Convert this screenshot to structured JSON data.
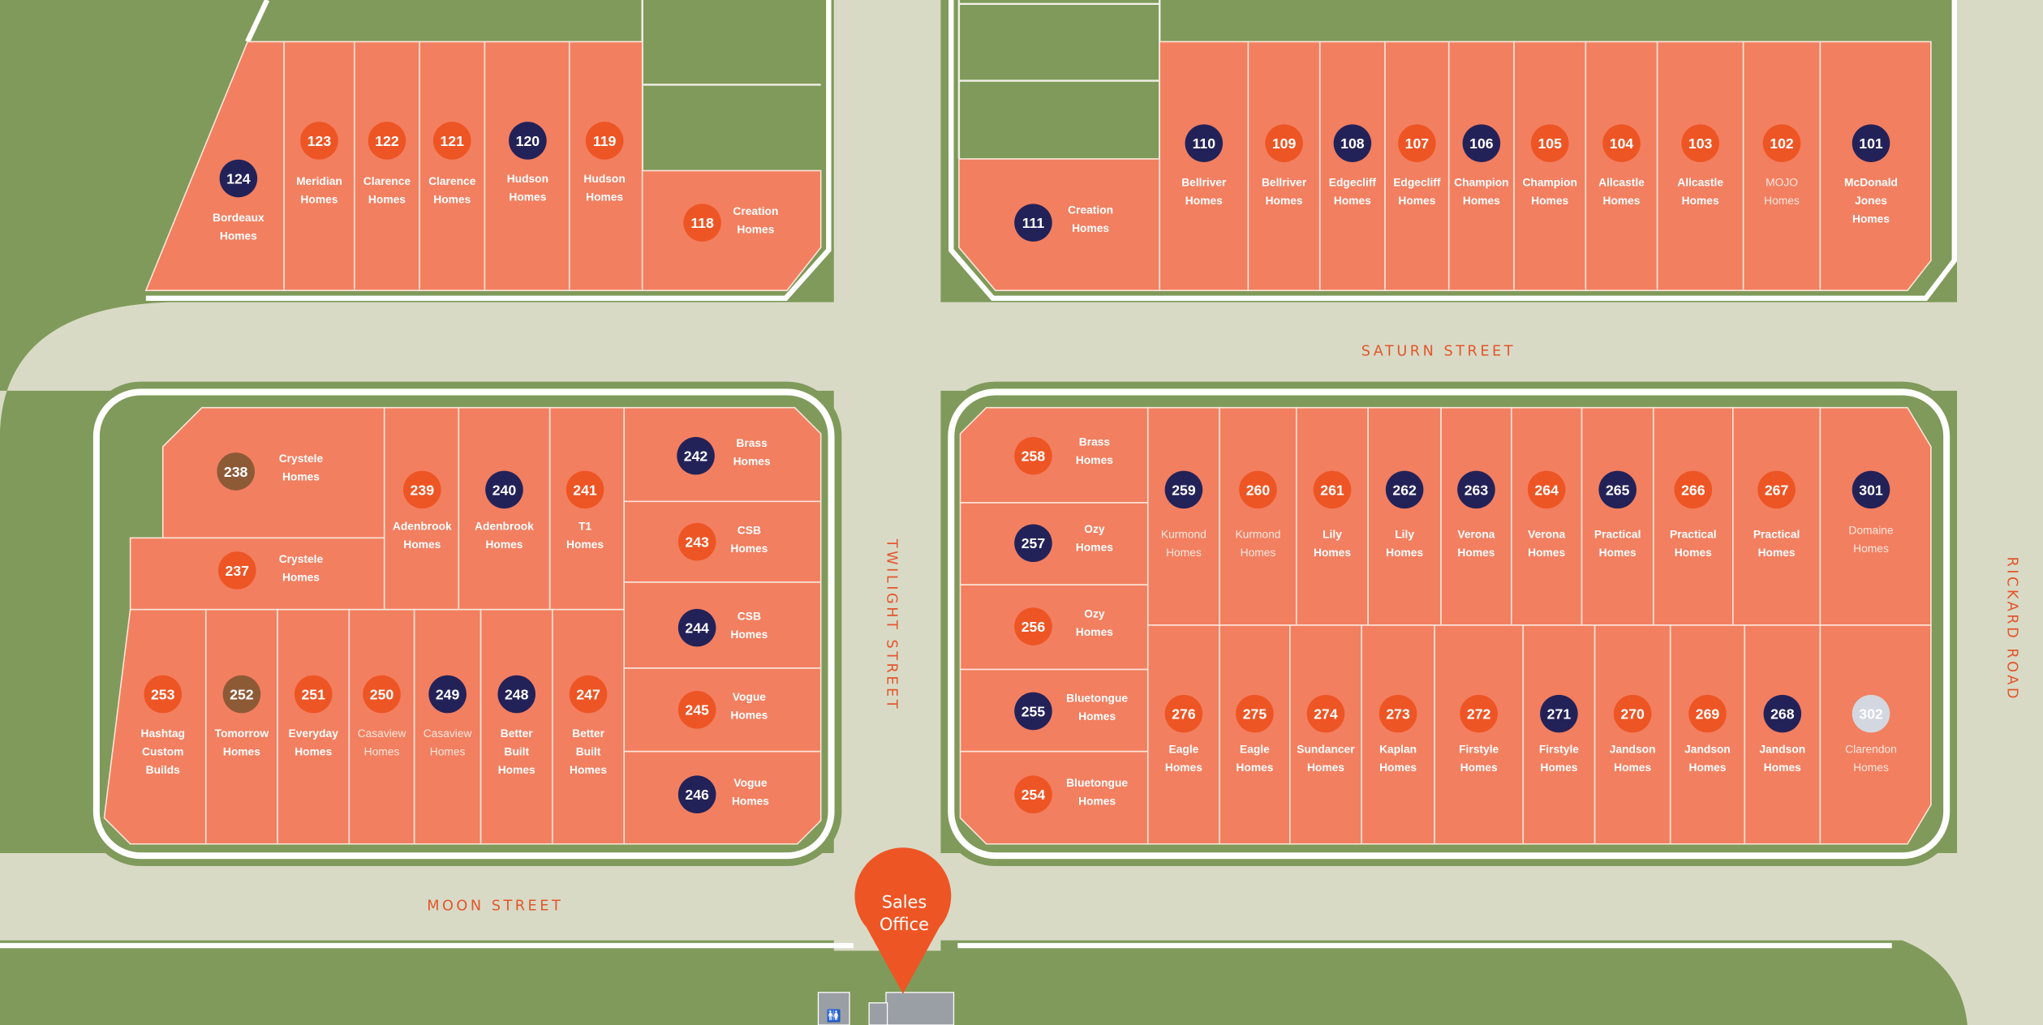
{
  "colors": {
    "grass": "#7f9a5a",
    "road": "#d8dac6",
    "lot": "#f27f60",
    "marker_orange": "#ee5524",
    "marker_navy": "#232258",
    "marker_brown": "#8d5a36",
    "marker_grey": "#d3d7e0",
    "street_label": "#e2562a"
  },
  "streets": {
    "saturn": "SATURN STREET",
    "twilight": "TWILIGHT STREET",
    "moon": "MOON STREET",
    "rickard": "RICKARD ROAD"
  },
  "sales_office": {
    "line1": "Sales",
    "line2": "Office",
    "icon": "map-pin-icon"
  },
  "lots": [
    {
      "number": "124",
      "builder": "Bordeaux Homes",
      "marker": "navy"
    },
    {
      "number": "123",
      "builder": "Meridian Homes",
      "marker": "orange"
    },
    {
      "number": "122",
      "builder": "Clarence Homes",
      "marker": "orange"
    },
    {
      "number": "121",
      "builder": "Clarence Homes",
      "marker": "orange"
    },
    {
      "number": "120",
      "builder": "Hudson Homes",
      "marker": "navy"
    },
    {
      "number": "119",
      "builder": "Hudson Homes",
      "marker": "orange"
    },
    {
      "number": "118",
      "builder": "Creation Homes",
      "marker": "orange"
    },
    {
      "number": "111",
      "builder": "Creation Homes",
      "marker": "navy"
    },
    {
      "number": "110",
      "builder": "Bellriver Homes",
      "marker": "navy"
    },
    {
      "number": "109",
      "builder": "Bellriver Homes",
      "marker": "orange"
    },
    {
      "number": "108",
      "builder": "Edgecliff Homes",
      "marker": "navy"
    },
    {
      "number": "107",
      "builder": "Edgecliff Homes",
      "marker": "orange"
    },
    {
      "number": "106",
      "builder": "Champion Homes",
      "marker": "navy"
    },
    {
      "number": "105",
      "builder": "Champion Homes",
      "marker": "orange"
    },
    {
      "number": "104",
      "builder": "Allcastle Homes",
      "marker": "orange"
    },
    {
      "number": "103",
      "builder": "Allcastle Homes",
      "marker": "orange"
    },
    {
      "number": "102",
      "builder": "MOJO Homes",
      "marker": "orange"
    },
    {
      "number": "101",
      "builder": "McDonald Jones Homes",
      "marker": "navy"
    },
    {
      "number": "238",
      "builder": "Crystele Homes",
      "marker": "brown"
    },
    {
      "number": "237",
      "builder": "Crystele Homes",
      "marker": "orange"
    },
    {
      "number": "239",
      "builder": "Adenbrook Homes",
      "marker": "orange"
    },
    {
      "number": "240",
      "builder": "Adenbrook Homes",
      "marker": "navy"
    },
    {
      "number": "241",
      "builder": "T1 Homes",
      "marker": "orange"
    },
    {
      "number": "242",
      "builder": "Brass Homes",
      "marker": "navy"
    },
    {
      "number": "243",
      "builder": "CSB Homes",
      "marker": "orange"
    },
    {
      "number": "244",
      "builder": "CSB Homes",
      "marker": "navy"
    },
    {
      "number": "245",
      "builder": "Vogue Homes",
      "marker": "orange"
    },
    {
      "number": "246",
      "builder": "Vogue Homes",
      "marker": "navy"
    },
    {
      "number": "253",
      "builder": "Hashtag Custom Builds",
      "marker": "orange"
    },
    {
      "number": "252",
      "builder": "Tomorrow Homes",
      "marker": "brown"
    },
    {
      "number": "251",
      "builder": "Everyday Homes",
      "marker": "orange"
    },
    {
      "number": "250",
      "builder": "Casaview Homes",
      "marker": "orange"
    },
    {
      "number": "249",
      "builder": "Casaview Homes",
      "marker": "navy"
    },
    {
      "number": "248",
      "builder": "Better Built Homes",
      "marker": "navy"
    },
    {
      "number": "247",
      "builder": "Better Built Homes",
      "marker": "orange"
    },
    {
      "number": "258",
      "builder": "Brass Homes",
      "marker": "orange"
    },
    {
      "number": "257",
      "builder": "Ozy Homes",
      "marker": "navy"
    },
    {
      "number": "256",
      "builder": "Ozy Homes",
      "marker": "orange"
    },
    {
      "number": "255",
      "builder": "Bluetongue Homes",
      "marker": "navy"
    },
    {
      "number": "254",
      "builder": "Bluetongue Homes",
      "marker": "orange"
    },
    {
      "number": "259",
      "builder": "Kurmond Homes",
      "marker": "navy"
    },
    {
      "number": "260",
      "builder": "Kurmond Homes",
      "marker": "orange"
    },
    {
      "number": "261",
      "builder": "Lily Homes",
      "marker": "orange"
    },
    {
      "number": "262",
      "builder": "Lily Homes",
      "marker": "navy"
    },
    {
      "number": "263",
      "builder": "Verona Homes",
      "marker": "navy"
    },
    {
      "number": "264",
      "builder": "Verona Homes",
      "marker": "orange"
    },
    {
      "number": "265",
      "builder": "Practical Homes",
      "marker": "navy"
    },
    {
      "number": "266",
      "builder": "Practical Homes",
      "marker": "orange"
    },
    {
      "number": "267",
      "builder": "Practical Homes",
      "marker": "orange"
    },
    {
      "number": "301",
      "builder": "Domaine Homes",
      "marker": "navy"
    },
    {
      "number": "276",
      "builder": "Eagle Homes",
      "marker": "orange"
    },
    {
      "number": "275",
      "builder": "Eagle Homes",
      "marker": "orange"
    },
    {
      "number": "274",
      "builder": "Sundancer Homes",
      "marker": "orange"
    },
    {
      "number": "273",
      "builder": "Kaplan Homes",
      "marker": "orange"
    },
    {
      "number": "272",
      "builder": "Firstyle Homes",
      "marker": "orange"
    },
    {
      "number": "271",
      "builder": "Firstyle Homes",
      "marker": "navy"
    },
    {
      "number": "270",
      "builder": "Jandson Homes",
      "marker": "orange"
    },
    {
      "number": "269",
      "builder": "Jandson Homes",
      "marker": "orange"
    },
    {
      "number": "268",
      "builder": "Jandson Homes",
      "marker": "navy"
    },
    {
      "number": "302",
      "builder": "Clarendon Homes",
      "marker": "grey"
    }
  ]
}
